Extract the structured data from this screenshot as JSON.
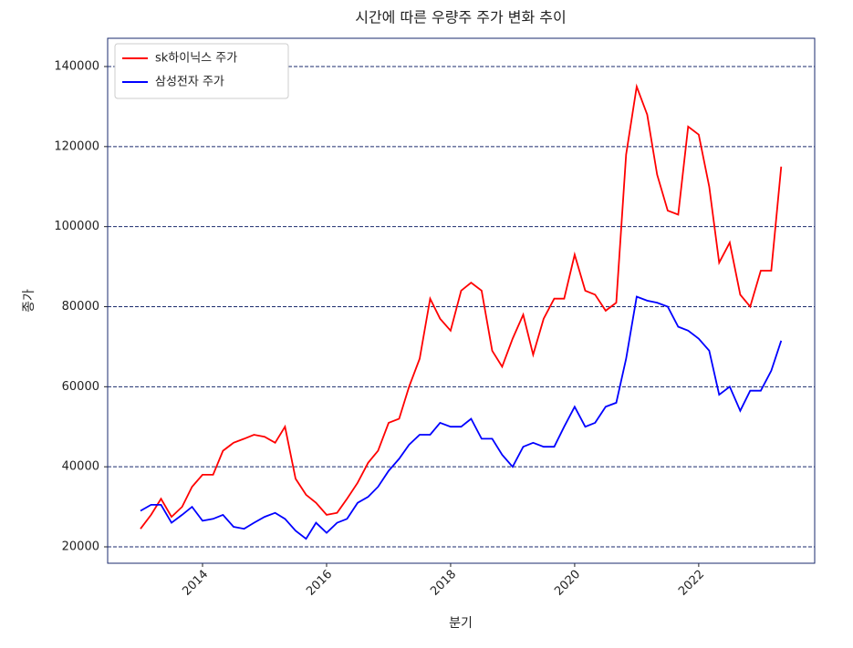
{
  "chart_data": {
    "type": "line",
    "title": "시간에 따른 우량주 주가 변화 추이",
    "x_label": "분기",
    "y_label": "종가",
    "x": [
      2013,
      2013.17,
      2013.33,
      2013.5,
      2013.67,
      2013.83,
      2014,
      2014.17,
      2014.33,
      2014.5,
      2014.67,
      2014.83,
      2015,
      2015.17,
      2015.33,
      2015.5,
      2015.67,
      2015.83,
      2016,
      2016.17,
      2016.33,
      2016.5,
      2016.67,
      2016.83,
      2017,
      2017.17,
      2017.33,
      2017.5,
      2017.67,
      2017.83,
      2018,
      2018.17,
      2018.33,
      2018.5,
      2018.67,
      2018.83,
      2019,
      2019.17,
      2019.33,
      2019.5,
      2019.67,
      2019.83,
      2020,
      2020.17,
      2020.33,
      2020.5,
      2020.67,
      2020.83,
      2021,
      2021.17,
      2021.33,
      2021.5,
      2021.67,
      2021.83,
      2022,
      2022.17,
      2022.33,
      2022.5,
      2022.67,
      2022.83,
      2023,
      2023.17,
      2023.33
    ],
    "series": [
      {
        "name": "sk하이닉스 주가",
        "color": "#ff0000",
        "values": [
          24500,
          28000,
          32000,
          27500,
          30000,
          35000,
          38000,
          38000,
          44000,
          46000,
          47000,
          48000,
          47500,
          46000,
          50000,
          37000,
          33000,
          31000,
          28000,
          28500,
          32000,
          36000,
          41000,
          44000,
          51000,
          52000,
          60000,
          67000,
          82000,
          77000,
          74000,
          84000,
          86000,
          84000,
          69000,
          65000,
          72000,
          78000,
          68000,
          77000,
          82000,
          82000,
          93000,
          84000,
          83000,
          79000,
          81000,
          118000,
          135000,
          128000,
          113000,
          104000,
          103000,
          125000,
          123000,
          110000,
          91000,
          96000,
          83000,
          80000,
          89000,
          89000,
          115000
        ]
      },
      {
        "name": "삼성전자 주가",
        "color": "#0000ff",
        "values": [
          29000,
          30500,
          30500,
          26000,
          28000,
          30000,
          26500,
          27000,
          28000,
          25000,
          24500,
          26000,
          27500,
          28500,
          27000,
          24000,
          22000,
          26000,
          23500,
          26000,
          27000,
          31000,
          32500,
          35000,
          39000,
          42000,
          45500,
          48000,
          48000,
          51000,
          50000,
          50000,
          52000,
          47000,
          47000,
          43000,
          40000,
          45000,
          46000,
          45000,
          45000,
          50000,
          55000,
          50000,
          51000,
          55000,
          56000,
          67000,
          82500,
          81500,
          81000,
          80000,
          75000,
          74000,
          72000,
          69000,
          58000,
          60000,
          54000,
          59000,
          59000,
          64000,
          71500
        ]
      }
    ],
    "xlim": [
      2012.47,
      2023.87
    ],
    "xticks": [
      2014,
      2016,
      2018,
      2020,
      2022
    ],
    "ylim": [
      15900,
      147060
    ],
    "yticks": [
      20000,
      40000,
      60000,
      80000,
      100000,
      120000,
      140000
    ],
    "grid": true,
    "legend": "upper left"
  }
}
